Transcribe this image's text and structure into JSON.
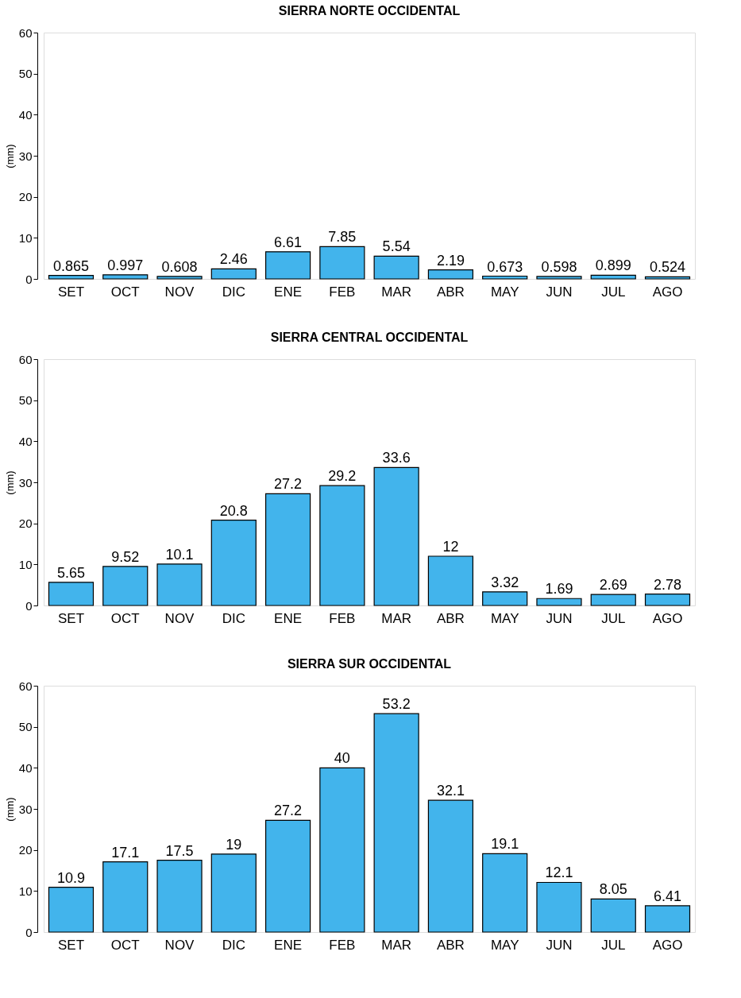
{
  "chart_data": [
    {
      "type": "bar",
      "title": "SIERRA NORTE OCCIDENTAL",
      "ylabel": "(mm)",
      "categories": [
        "SET",
        "OCT",
        "NOV",
        "DIC",
        "ENE",
        "FEB",
        "MAR",
        "ABR",
        "MAY",
        "JUN",
        "JUL",
        "AGO"
      ],
      "values": [
        0.865,
        0.997,
        0.608,
        2.46,
        6.61,
        7.85,
        5.54,
        2.19,
        0.673,
        0.598,
        0.899,
        0.524
      ],
      "color": "#42b4ec",
      "ylim": [
        0,
        60
      ],
      "yticks": [
        0,
        10,
        20,
        30,
        40,
        50,
        60
      ],
      "data_labels": true,
      "grid": false
    },
    {
      "type": "bar",
      "title": "SIERRA CENTRAL OCCIDENTAL",
      "ylabel": "(mm)",
      "categories": [
        "SET",
        "OCT",
        "NOV",
        "DIC",
        "ENE",
        "FEB",
        "MAR",
        "ABR",
        "MAY",
        "JUN",
        "JUL",
        "AGO"
      ],
      "values": [
        5.65,
        9.52,
        10.1,
        20.8,
        27.2,
        29.2,
        33.6,
        12,
        3.32,
        1.69,
        2.69,
        2.78
      ],
      "color": "#42b4ec",
      "ylim": [
        0,
        60
      ],
      "yticks": [
        0,
        10,
        20,
        30,
        40,
        50,
        60
      ],
      "data_labels": true,
      "grid": false
    },
    {
      "type": "bar",
      "title": "SIERRA SUR OCCIDENTAL",
      "ylabel": "(mm)",
      "categories": [
        "SET",
        "OCT",
        "NOV",
        "DIC",
        "ENE",
        "FEB",
        "MAR",
        "ABR",
        "MAY",
        "JUN",
        "JUL",
        "AGO"
      ],
      "values": [
        10.9,
        17.1,
        17.5,
        19,
        27.2,
        40,
        53.2,
        32.1,
        19.1,
        12.1,
        8.05,
        6.41
      ],
      "color": "#42b4ec",
      "ylim": [
        0,
        60
      ],
      "yticks": [
        0,
        10,
        20,
        30,
        40,
        50,
        60
      ],
      "data_labels": true,
      "grid": false
    }
  ]
}
